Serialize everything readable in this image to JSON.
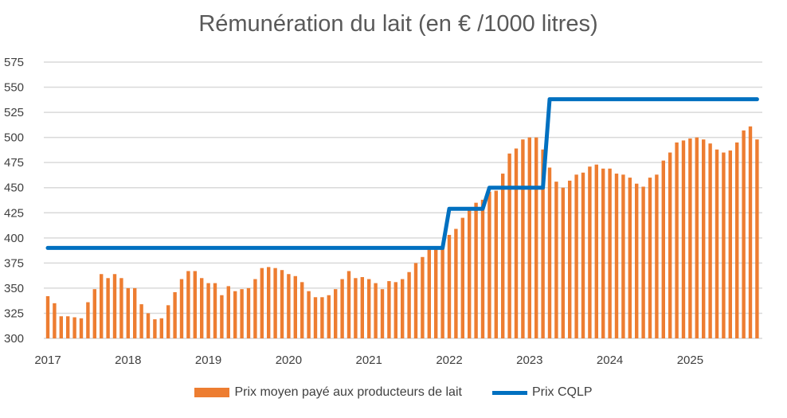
{
  "chart_data": {
    "type": "bar",
    "title": "Rémunération du lait (en € /1000 litres)",
    "xlabel": "",
    "ylabel": "",
    "ylim": [
      300,
      575
    ],
    "yticks": [
      "300",
      "325",
      "350",
      "375",
      "400",
      "425",
      "450",
      "475",
      "500",
      "525",
      "550",
      "575"
    ],
    "xticks": [
      "2017",
      "2018",
      "2019",
      "2020",
      "2021",
      "2022",
      "2023",
      "2024",
      "2025"
    ],
    "x_start": "2017-01",
    "frequency": "monthly",
    "grid": true,
    "legend_placement": "bottom",
    "series": [
      {
        "name": "Prix moyen payé aux producteurs de lait",
        "type": "bar",
        "color": "#ED7D31",
        "values": [
          342,
          335,
          322,
          322,
          321,
          320,
          336,
          349,
          364,
          360,
          364,
          360,
          350,
          350,
          334,
          325,
          319,
          320,
          333,
          346,
          359,
          367,
          367,
          360,
          355,
          355,
          343,
          352,
          347,
          349,
          350,
          359,
          370,
          371,
          370,
          368,
          364,
          362,
          356,
          347,
          341,
          341,
          343,
          349,
          359,
          367,
          360,
          361,
          359,
          355,
          349,
          357,
          356,
          359,
          366,
          375,
          381,
          390,
          390,
          390,
          403,
          409,
          420,
          428,
          435,
          438,
          446,
          447,
          464,
          484,
          489,
          498,
          500,
          500,
          488,
          470,
          456,
          450,
          457,
          463,
          465,
          471,
          473,
          469,
          469,
          464,
          463,
          460,
          454,
          451,
          460,
          463,
          477,
          485,
          495,
          497,
          499,
          500,
          498,
          494,
          488,
          485,
          487,
          495,
          507,
          511,
          498
        ]
      },
      {
        "name": "Prix CQLP",
        "type": "line",
        "color": "#0070C0",
        "values": [
          390,
          390,
          390,
          390,
          390,
          390,
          390,
          390,
          390,
          390,
          390,
          390,
          390,
          390,
          390,
          390,
          390,
          390,
          390,
          390,
          390,
          390,
          390,
          390,
          390,
          390,
          390,
          390,
          390,
          390,
          390,
          390,
          390,
          390,
          390,
          390,
          390,
          390,
          390,
          390,
          390,
          390,
          390,
          390,
          390,
          390,
          390,
          390,
          390,
          390,
          390,
          390,
          390,
          390,
          390,
          390,
          390,
          390,
          390,
          390,
          429,
          429,
          429,
          429,
          429,
          429,
          450,
          450,
          450,
          450,
          450,
          450,
          450,
          450,
          450,
          538,
          538,
          538,
          538,
          538,
          538,
          538,
          538,
          538,
          538,
          538,
          538,
          538,
          538,
          538,
          538,
          538,
          538,
          538,
          538,
          538,
          538,
          538,
          538,
          538,
          538,
          538,
          538,
          538,
          538,
          538,
          538
        ]
      }
    ]
  }
}
